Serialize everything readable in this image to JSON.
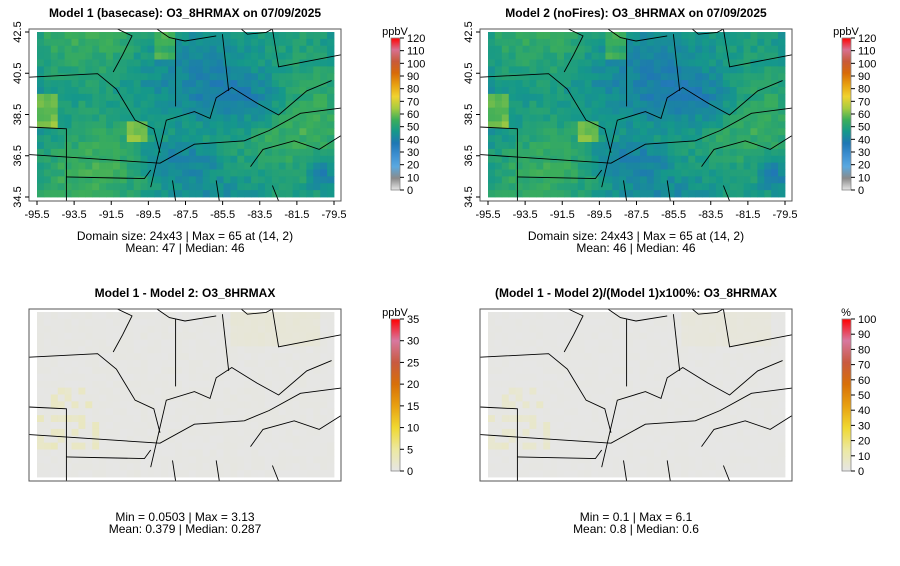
{
  "panels": [
    {
      "title": "Model 1 (basecase): O3_8HRMAX on 07/09/2025",
      "unit": "ppbV",
      "scale": "ozone",
      "colorbar_ticks": [
        "0",
        "10",
        "20",
        "30",
        "40",
        "50",
        "60",
        "70",
        "80",
        "90",
        "100",
        "110",
        "120"
      ],
      "colorbar_range": [
        0,
        120
      ],
      "x_ticks": [
        "-95.5",
        "-93.5",
        "-91.5",
        "-89.5",
        "-87.5",
        "-85.5",
        "-83.5",
        "-81.5",
        "-79.5"
      ],
      "y_ticks": [
        "34.5",
        "36.5",
        "38.5",
        "40.5",
        "42.5"
      ],
      "stats_line1": "Domain size: 24x43 | Max = 65 at (14, 2)",
      "stats_line2": "Mean: 47 |  Median: 46",
      "field": {
        "mean": 47,
        "max": 65,
        "min": 25
      }
    },
    {
      "title": "Model 2 (noFires): O3_8HRMAX on 07/09/2025",
      "unit": "ppbV",
      "scale": "ozone",
      "colorbar_ticks": [
        "0",
        "10",
        "20",
        "30",
        "40",
        "50",
        "60",
        "70",
        "80",
        "90",
        "100",
        "110",
        "120"
      ],
      "colorbar_range": [
        0,
        120
      ],
      "x_ticks": [
        "-95.5",
        "-93.5",
        "-91.5",
        "-89.5",
        "-87.5",
        "-85.5",
        "-83.5",
        "-81.5",
        "-79.5"
      ],
      "y_ticks": [
        "34.5",
        "36.5",
        "38.5",
        "40.5",
        "42.5"
      ],
      "stats_line1": "Domain size: 24x43 | Max = 65 at (14, 2)",
      "stats_line2": "Mean: 46 |  Median: 46",
      "field": {
        "mean": 46,
        "max": 65,
        "min": 25
      }
    },
    {
      "title": "Model 1 - Model 2: O3_8HRMAX",
      "unit": "ppbV",
      "scale": "diff",
      "colorbar_ticks": [
        "0",
        "5",
        "10",
        "15",
        "20",
        "25",
        "30",
        "35"
      ],
      "colorbar_range": [
        0,
        35
      ],
      "stats_line1": "Min = 0.0503 | Max = 3.13",
      "stats_line2": "Mean: 0.379 |  Median: 0.287",
      "field": {
        "mean": 0.379,
        "max": 3.13,
        "min": 0.0503
      }
    },
    {
      "title": "(Model 1 - Model 2)/(Model 1)x100%: O3_8HRMAX",
      "unit": "%",
      "scale": "diffpct",
      "colorbar_ticks": [
        "0",
        "10",
        "20",
        "30",
        "40",
        "50",
        "60",
        "70",
        "80",
        "90",
        "100"
      ],
      "colorbar_range": [
        0,
        100
      ],
      "stats_line1": "Min = 0.1 | Max = 6.1",
      "stats_line2": "Mean: 0.8 |  Median: 0.6",
      "field": {
        "mean": 0.8,
        "max": 6.1,
        "min": 0.1
      }
    }
  ],
  "colors": {
    "ozone_stops": [
      "#e6e6e6",
      "#8a8a8a",
      "#5aa9e0",
      "#3d8fd1",
      "#1f77b4",
      "#15988a",
      "#3cae5a",
      "#a8cc3f",
      "#f0d330",
      "#e8a010",
      "#d86a08",
      "#c85a3a",
      "#d87090",
      "#ff0000"
    ],
    "diff_stops": [
      "#e6e6e6",
      "#ece8a0",
      "#f0d830",
      "#e8a010",
      "#d87008",
      "#c85a40",
      "#d878a0",
      "#ff0000"
    ],
    "background": "#e6e6e6"
  }
}
